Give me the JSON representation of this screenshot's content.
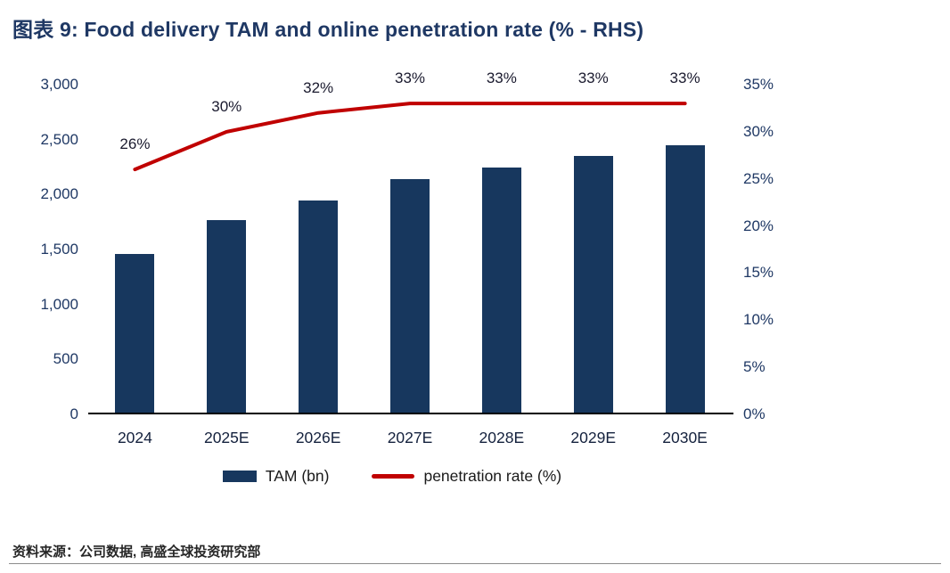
{
  "title": "图表 9: Food delivery TAM and online penetration rate (% - RHS)",
  "source": "资料来源：公司数据, 高盛全球投资研究部",
  "legend": {
    "tam": "TAM (bn)",
    "penetration": "penetration rate (%)"
  },
  "colors": {
    "bar": "#17375e",
    "line": "#c00000",
    "title_text": "#1f3864",
    "axis_text": "#1f3864"
  },
  "chart_data": {
    "type": "bar+line",
    "title": "Food delivery TAM and online penetration rate (% - RHS)",
    "categories": [
      "2024",
      "2025E",
      "2026E",
      "2027E",
      "2028E",
      "2029E",
      "2030E"
    ],
    "series": [
      {
        "name": "TAM (bn)",
        "type": "bar",
        "axis": "left",
        "values": [
          1460,
          1770,
          1950,
          2140,
          2250,
          2350,
          2450
        ]
      },
      {
        "name": "penetration rate (%)",
        "type": "line",
        "axis": "right",
        "values": [
          26,
          30,
          32,
          33,
          33,
          33,
          33
        ],
        "labels": [
          "26%",
          "30%",
          "32%",
          "33%",
          "33%",
          "33%",
          "33%"
        ]
      }
    ],
    "left_axis": {
      "min": 0,
      "max": 3000,
      "tick_step": 500,
      "ticks": [
        "0",
        "500",
        "1,000",
        "1,500",
        "2,000",
        "2,500",
        "3,000"
      ]
    },
    "right_axis": {
      "min": 0,
      "max": 35,
      "tick_step": 5,
      "ticks": [
        "0%",
        "5%",
        "10%",
        "15%",
        "20%",
        "25%",
        "30%",
        "35%"
      ]
    },
    "grid": false,
    "legend_position": "bottom"
  }
}
